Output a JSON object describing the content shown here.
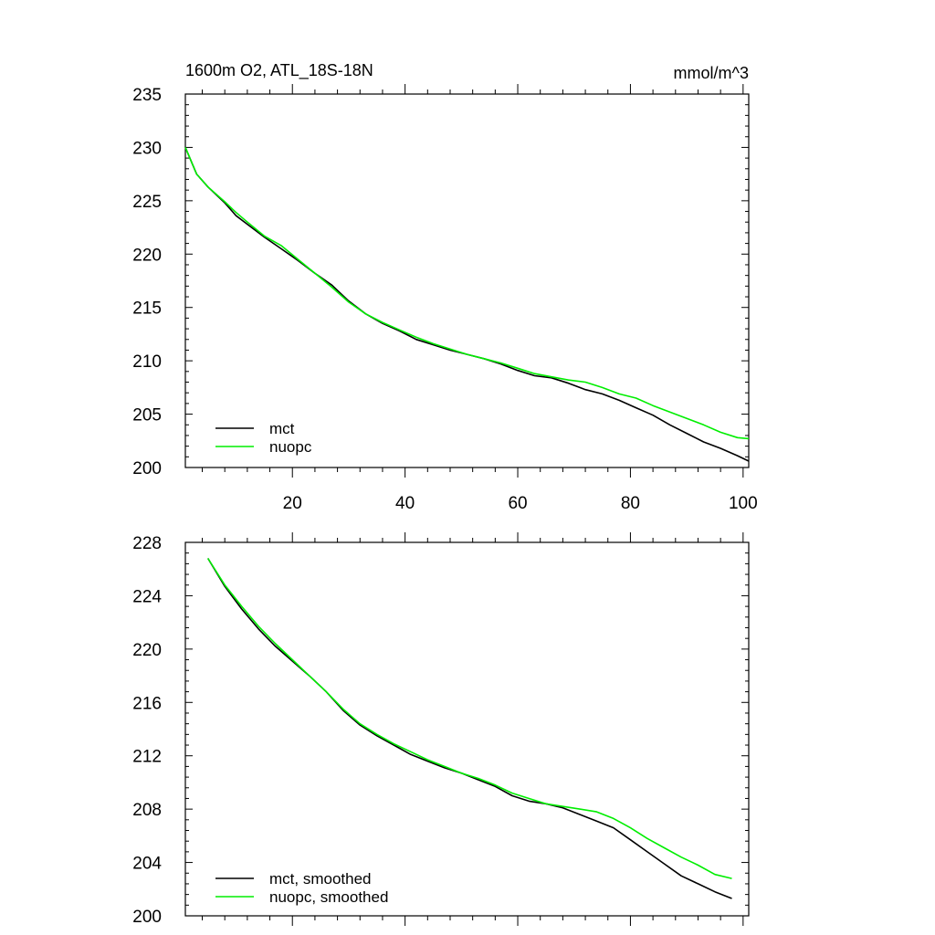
{
  "colors": {
    "mct": "#000000",
    "nuopc": "#00ee00"
  },
  "chart_data": [
    {
      "type": "line",
      "title": "1600m O2, ATL_18S-18N",
      "units": "mmol/m^3",
      "xlim": [
        1,
        101
      ],
      "ylim": [
        200,
        235
      ],
      "xticks": [
        20,
        40,
        60,
        80,
        100
      ],
      "xtick_labels": [
        "20",
        "40",
        "60",
        "80",
        "100"
      ],
      "yticks": [
        200,
        205,
        210,
        215,
        220,
        225,
        230,
        235
      ],
      "ytick_labels": [
        "200",
        "205",
        "210",
        "215",
        "220",
        "225",
        "230",
        "235"
      ],
      "show_xtick_labels": true,
      "legend_position": "bottom-left",
      "series": [
        {
          "name": "mct",
          "color": "#000000",
          "x": [
            1,
            3,
            5,
            8,
            10,
            12,
            15,
            18,
            21,
            24,
            27,
            30,
            33,
            36,
            39,
            42,
            45,
            48,
            51,
            54,
            57,
            60,
            63,
            66,
            69,
            72,
            75,
            78,
            81,
            84,
            87,
            90,
            93,
            96,
            99,
            101
          ],
          "values": [
            230.0,
            227.5,
            226.3,
            224.8,
            223.6,
            222.8,
            221.6,
            220.5,
            219.4,
            218.2,
            217.1,
            215.6,
            214.4,
            213.5,
            212.8,
            212.0,
            211.5,
            211.0,
            210.6,
            210.2,
            209.7,
            209.1,
            208.6,
            208.4,
            207.9,
            207.3,
            206.9,
            206.3,
            205.6,
            204.9,
            204.0,
            203.2,
            202.4,
            201.8,
            201.1,
            200.6
          ]
        },
        {
          "name": "nuopc",
          "color": "#00ee00",
          "x": [
            1,
            3,
            5,
            8,
            10,
            12,
            15,
            18,
            21,
            24,
            27,
            30,
            33,
            36,
            39,
            42,
            45,
            48,
            51,
            54,
            57,
            60,
            63,
            66,
            69,
            72,
            75,
            78,
            81,
            84,
            87,
            90,
            93,
            96,
            99,
            101
          ],
          "values": [
            230.0,
            227.5,
            226.3,
            224.9,
            223.9,
            223.0,
            221.7,
            220.8,
            219.5,
            218.2,
            216.9,
            215.5,
            214.4,
            213.6,
            212.9,
            212.2,
            211.6,
            211.1,
            210.6,
            210.2,
            209.8,
            209.3,
            208.8,
            208.5,
            208.2,
            208.0,
            207.5,
            206.9,
            206.5,
            205.8,
            205.2,
            204.6,
            204.0,
            203.3,
            202.8,
            202.7
          ]
        }
      ]
    },
    {
      "type": "line",
      "title": "",
      "xlim": [
        1,
        101
      ],
      "ylim": [
        200,
        228
      ],
      "xticks": [
        20,
        40,
        60,
        80,
        100
      ],
      "xtick_labels": [],
      "yticks": [
        200,
        204,
        208,
        212,
        216,
        220,
        224,
        228
      ],
      "ytick_labels": [
        "200",
        "204",
        "208",
        "212",
        "216",
        "220",
        "224",
        "228"
      ],
      "show_xtick_labels": false,
      "legend_position": "bottom-left",
      "series": [
        {
          "name": "mct, smoothed",
          "color": "#000000",
          "x": [
            5,
            8,
            11,
            14,
            17,
            20,
            23,
            26,
            29,
            32,
            35,
            38,
            41,
            44,
            47,
            50,
            53,
            56,
            59,
            62,
            65,
            68,
            71,
            74,
            77,
            80,
            83,
            86,
            89,
            92,
            95,
            98
          ],
          "values": [
            226.8,
            224.7,
            223.0,
            221.5,
            220.2,
            219.1,
            218.0,
            216.8,
            215.4,
            214.3,
            213.5,
            212.8,
            212.1,
            211.6,
            211.1,
            210.7,
            210.2,
            209.7,
            209.0,
            208.6,
            208.4,
            208.1,
            207.6,
            207.1,
            206.6,
            205.7,
            204.8,
            203.9,
            203.0,
            202.4,
            201.8,
            201.3
          ]
        },
        {
          "name": "nuopc, smoothed",
          "color": "#00ee00",
          "x": [
            5,
            8,
            11,
            14,
            17,
            20,
            23,
            26,
            29,
            32,
            35,
            38,
            41,
            44,
            47,
            50,
            53,
            56,
            59,
            62,
            65,
            68,
            71,
            74,
            77,
            80,
            83,
            86,
            89,
            92,
            95,
            98
          ],
          "values": [
            226.8,
            224.8,
            223.2,
            221.7,
            220.4,
            219.2,
            218.0,
            216.8,
            215.5,
            214.4,
            213.6,
            212.9,
            212.3,
            211.7,
            211.2,
            210.7,
            210.3,
            209.8,
            209.2,
            208.8,
            208.4,
            208.2,
            208.0,
            207.8,
            207.3,
            206.6,
            205.8,
            205.1,
            204.4,
            203.8,
            203.1,
            202.8
          ]
        }
      ]
    }
  ]
}
